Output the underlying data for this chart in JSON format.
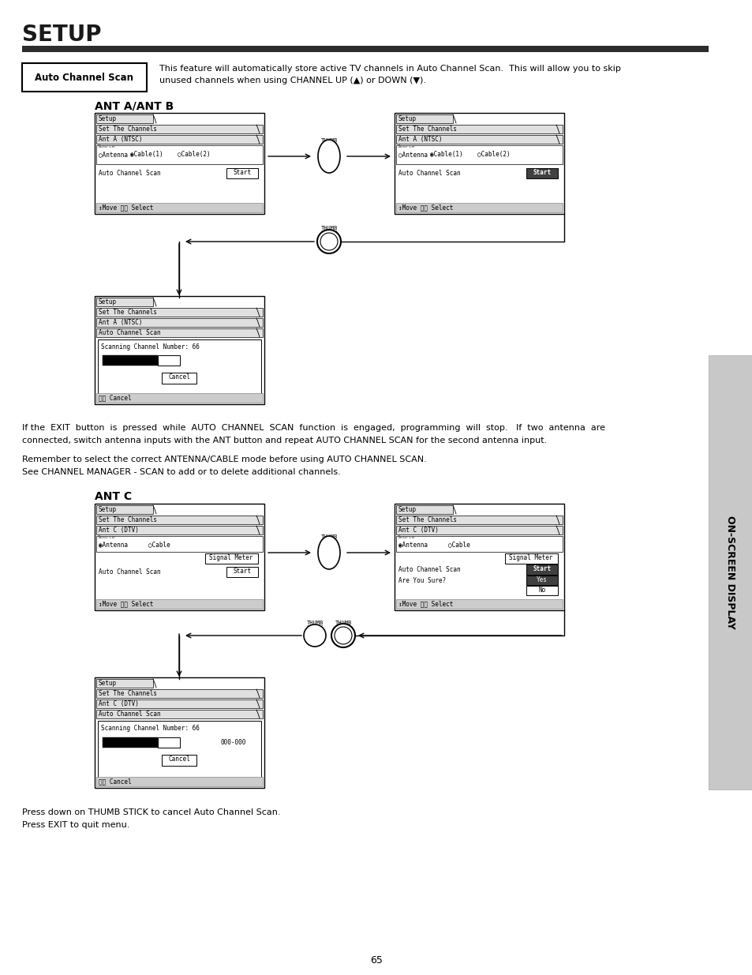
{
  "title": "SETUP",
  "title_bar_color": "#2d2d2d",
  "page_bg": "#ffffff",
  "page_number": "65",
  "auto_channel_scan_label": "Auto Channel Scan",
  "auto_channel_scan_desc_1": "This feature will automatically store active TV channels in Auto Channel Scan.  This will allow you to skip",
  "auto_channel_scan_desc_2": "unused channels when using CHANNEL UP (▲) or DOWN (▼).",
  "ant_ab_label": "ANT A/ANT B",
  "ant_c_label": "ANT C",
  "para1_line1": "If the  EXIT  button  is  pressed  while  AUTO  CHANNEL  SCAN  function  is  engaged,  programming  will  stop.   If  two  antenna  are",
  "para1_line2": "connected, switch antenna inputs with the ANT button and repeat AUTO CHANNEL SCAN for the second antenna input.",
  "para2_line1": "Remember to select the correct ANTENNA/CABLE mode before using AUTO CHANNEL SCAN.",
  "para2_line2": "See CHANNEL MANAGER - SCAN to add or to delete additional channels.",
  "footer_text1": "Press down on THUMB STICK to cancel Auto Channel Scan.",
  "footer_text2": "Press EXIT to quit menu.",
  "sidebar_text": "ON-SCREEN DISPLAY",
  "sidebar_bg": "#c8c8c8"
}
